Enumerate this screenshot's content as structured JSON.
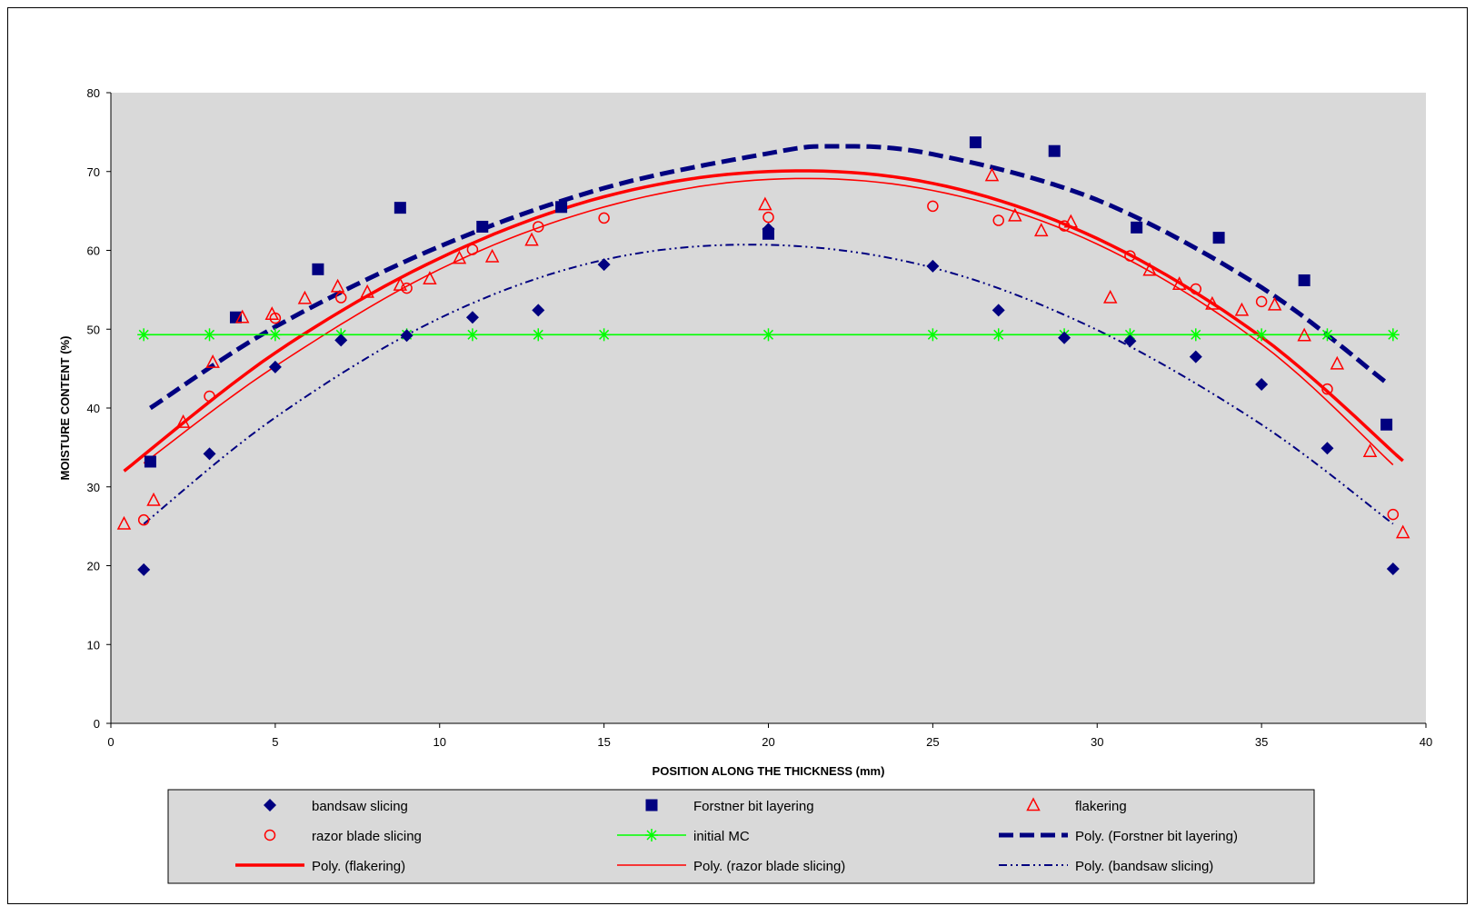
{
  "chart_data": {
    "type": "scatter",
    "title": "",
    "xlabel": "POSITION ALONG THE THICKNESS (mm)",
    "ylabel": "MOISTURE CONTENT (%)",
    "xlim": [
      0,
      40
    ],
    "ylim": [
      0,
      80
    ],
    "x_ticks": [
      "0",
      "5",
      "10",
      "15",
      "20",
      "25",
      "30",
      "35",
      "40"
    ],
    "y_ticks": [
      "0",
      "10",
      "20",
      "30",
      "40",
      "50",
      "60",
      "70",
      "80"
    ],
    "grid": false,
    "plot_background": "#d9d9d9",
    "legend_position": "bottom",
    "series": [
      {
        "name": "bandsaw slicing",
        "kind": "points",
        "marker": "diamond",
        "color": "#000080",
        "points": [
          [
            1,
            19.5
          ],
          [
            3,
            34.2
          ],
          [
            5,
            45.2
          ],
          [
            7,
            48.6
          ],
          [
            9,
            49.2
          ],
          [
            11,
            51.5
          ],
          [
            13,
            52.4
          ],
          [
            15,
            58.2
          ],
          [
            20,
            62.7
          ],
          [
            25,
            58
          ],
          [
            27,
            52.4
          ],
          [
            29,
            48.9
          ],
          [
            31,
            48.5
          ],
          [
            33,
            46.5
          ],
          [
            35,
            43
          ],
          [
            37,
            34.9
          ],
          [
            39,
            19.6
          ]
        ]
      },
      {
        "name": "Forstner bit layering",
        "kind": "points",
        "marker": "square",
        "color": "#000080",
        "points": [
          [
            1.2,
            33.2
          ],
          [
            3.8,
            51.5
          ],
          [
            6.3,
            57.6
          ],
          [
            8.8,
            65.4
          ],
          [
            11.3,
            63
          ],
          [
            13.7,
            65.5
          ],
          [
            20,
            62.1
          ],
          [
            26.3,
            73.7
          ],
          [
            28.7,
            72.6
          ],
          [
            31.2,
            62.9
          ],
          [
            33.7,
            61.6
          ],
          [
            36.3,
            56.2
          ],
          [
            38.8,
            37.9
          ]
        ]
      },
      {
        "name": "flakering",
        "kind": "points",
        "marker": "triangle",
        "color": "#ff0000",
        "points": [
          [
            0.4,
            25.3
          ],
          [
            1.3,
            28.3
          ],
          [
            2.2,
            38.2
          ],
          [
            3.1,
            45.8
          ],
          [
            4,
            51.5
          ],
          [
            4.9,
            51.9
          ],
          [
            5.9,
            53.9
          ],
          [
            6.9,
            55.4
          ],
          [
            7.8,
            54.7
          ],
          [
            8.8,
            55.6
          ],
          [
            9.7,
            56.4
          ],
          [
            10.6,
            59
          ],
          [
            11.6,
            59.2
          ],
          [
            12.8,
            61.3
          ],
          [
            19.9,
            65.8
          ],
          [
            26.8,
            69.5
          ],
          [
            27.5,
            64.4
          ],
          [
            28.3,
            62.5
          ],
          [
            29.2,
            63.6
          ],
          [
            30.4,
            54
          ],
          [
            31.6,
            57.5
          ],
          [
            32.5,
            55.7
          ],
          [
            33.5,
            53.2
          ],
          [
            34.4,
            52.4
          ],
          [
            35.4,
            53.1
          ],
          [
            36.3,
            49.2
          ],
          [
            37.3,
            45.6
          ],
          [
            38.3,
            34.5
          ],
          [
            39.3,
            24.2
          ]
        ]
      },
      {
        "name": "razor blade slicing",
        "kind": "points",
        "marker": "circle",
        "color": "#ff0000",
        "points": [
          [
            1,
            25.8
          ],
          [
            3,
            41.5
          ],
          [
            5,
            51.4
          ],
          [
            7,
            54
          ],
          [
            9,
            55.2
          ],
          [
            11,
            60.1
          ],
          [
            13,
            63
          ],
          [
            15,
            64.1
          ],
          [
            20,
            64.2
          ],
          [
            25,
            65.6
          ],
          [
            27,
            63.8
          ],
          [
            29,
            63.1
          ],
          [
            31,
            59.3
          ],
          [
            33,
            55.1
          ],
          [
            35,
            53.5
          ],
          [
            37,
            42.4
          ],
          [
            39,
            26.5
          ]
        ]
      },
      {
        "name": "initial MC",
        "kind": "line-markers",
        "marker": "star",
        "color": "#00ff00",
        "points": [
          [
            1,
            49.3
          ],
          [
            3,
            49.3
          ],
          [
            5,
            49.3
          ],
          [
            7,
            49.3
          ],
          [
            9,
            49.3
          ],
          [
            11,
            49.3
          ],
          [
            13,
            49.3
          ],
          [
            15,
            49.3
          ],
          [
            20,
            49.3
          ],
          [
            25,
            49.3
          ],
          [
            27,
            49.3
          ],
          [
            29,
            49.3
          ],
          [
            31,
            49.3
          ],
          [
            33,
            49.3
          ],
          [
            35,
            49.3
          ],
          [
            37,
            49.3
          ],
          [
            39,
            49.3
          ]
        ]
      },
      {
        "name": "Poly. (Forstner bit layering)",
        "kind": "curve",
        "style": "long-dash",
        "color": "#000080",
        "x_range": [
          1.2,
          38.8
        ],
        "points": [
          [
            1.2,
            40
          ],
          [
            5,
            50.3
          ],
          [
            10,
            60.5
          ],
          [
            15,
            67.9
          ],
          [
            20,
            72.3
          ],
          [
            22,
            73.2
          ],
          [
            25,
            72.2
          ],
          [
            30,
            66.4
          ],
          [
            35,
            55.3
          ],
          [
            38.8,
            43.2
          ]
        ]
      },
      {
        "name": "Poly. (flakering)",
        "kind": "curve",
        "style": "solid-thick",
        "color": "#ff0000",
        "x_range": [
          0.4,
          39.3
        ],
        "points": [
          [
            0.4,
            32
          ],
          [
            5,
            47
          ],
          [
            10,
            59
          ],
          [
            15,
            66.8
          ],
          [
            20,
            70
          ],
          [
            25,
            68.5
          ],
          [
            30,
            61.5
          ],
          [
            35,
            49
          ],
          [
            39.3,
            33.3
          ]
        ]
      },
      {
        "name": "Poly. (razor blade slicing)",
        "kind": "curve",
        "style": "solid-thin",
        "color": "#ff0000",
        "x_range": [
          1,
          39
        ],
        "points": [
          [
            1,
            33
          ],
          [
            5,
            45.3
          ],
          [
            10,
            57.6
          ],
          [
            15,
            65.5
          ],
          [
            20,
            69
          ],
          [
            25,
            67.6
          ],
          [
            30,
            60.8
          ],
          [
            35,
            48.1
          ],
          [
            39,
            32.8
          ]
        ]
      },
      {
        "name": "Poly. (bandsaw slicing)",
        "kind": "curve",
        "style": "dash-dot-dot",
        "color": "#000080",
        "x_range": [
          1,
          39
        ],
        "points": [
          [
            1,
            25.3
          ],
          [
            5,
            38.8
          ],
          [
            10,
            51.4
          ],
          [
            15,
            58.8
          ],
          [
            20,
            60.7
          ],
          [
            25,
            57.8
          ],
          [
            30,
            49.9
          ],
          [
            35,
            37.9
          ],
          [
            39,
            25.3
          ]
        ]
      }
    ]
  }
}
